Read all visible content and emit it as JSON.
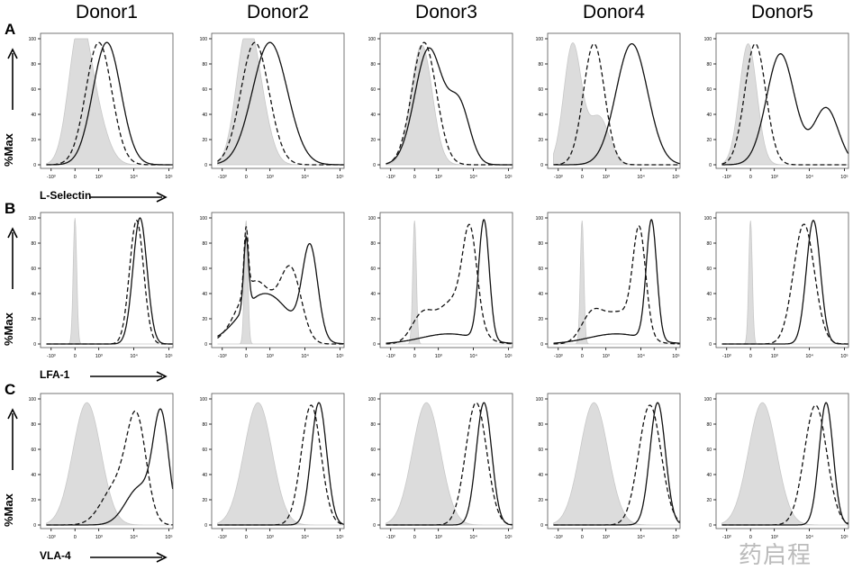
{
  "columns": [
    "Donor1",
    "Donor2",
    "Donor3",
    "Donor4",
    "Donor5"
  ],
  "watermark": "药启程",
  "chart_data": {
    "type": "histogram",
    "ylabel": "%Max",
    "yticks": [
      "0",
      "20",
      "40",
      "60",
      "80",
      "100"
    ],
    "ylim": [
      0,
      100
    ],
    "xscale": "biexponential",
    "xticks": [
      "-10³",
      "0",
      "10³",
      "10⁴",
      "10⁵"
    ],
    "grid": false,
    "series_styles": {
      "control": "gray filled",
      "dashed": "dashed line",
      "solid": "solid line"
    },
    "colors": {
      "control_fill": "#dcdcdc",
      "line": "#111111"
    },
    "rows": [
      {
        "letter": "A",
        "xlabel": "L-Selectin",
        "panels": [
          {
            "control": [
              {
                "c": 150,
                "sd": 0.3,
                "h": 95
              },
              {
                "c": 800,
                "sd": 0.35,
                "h": 40
              }
            ],
            "dashed": [
              {
                "c": 1000,
                "sd": 0.37,
                "h": 97
              }
            ],
            "solid": [
              {
                "c": 1700,
                "sd": 0.4,
                "h": 97
              }
            ]
          },
          {
            "control": [
              {
                "c": 0,
                "sd": 0.3,
                "h": 95
              },
              {
                "c": 600,
                "sd": 0.3,
                "h": 35
              }
            ],
            "dashed": [
              {
                "c": 370,
                "sd": 0.4,
                "h": 97
              }
            ],
            "solid": [
              {
                "c": 1000,
                "sd": 0.5,
                "h": 97
              }
            ]
          },
          {
            "control": [
              {
                "c": 300,
                "sd": 0.3,
                "h": 95
              }
            ],
            "dashed": [
              {
                "c": 400,
                "sd": 0.35,
                "h": 97
              }
            ],
            "solid": [
              {
                "c": 600,
                "sd": 0.4,
                "h": 92
              },
              {
                "c": 4000,
                "sd": 0.3,
                "h": 45
              }
            ]
          },
          {
            "control": [
              {
                "c": -400,
                "sd": 0.25,
                "h": 95
              },
              {
                "c": 700,
                "sd": 0.3,
                "h": 38
              }
            ],
            "dashed": [
              {
                "c": 500,
                "sd": 0.3,
                "h": 96
              }
            ],
            "solid": [
              {
                "c": 5500,
                "sd": 0.45,
                "h": 96
              }
            ]
          },
          {
            "control": [
              {
                "c": -100,
                "sd": 0.25,
                "h": 96
              }
            ],
            "dashed": [
              {
                "c": 200,
                "sd": 0.3,
                "h": 96
              }
            ],
            "solid": [
              {
                "c": 1500,
                "sd": 0.4,
                "h": 88
              },
              {
                "c": 30000,
                "sd": 0.35,
                "h": 45
              }
            ]
          }
        ]
      },
      {
        "letter": "B",
        "xlabel": "LFA-1",
        "panels": [
          {
            "control": [
              {
                "c": 0,
                "sd": 0.05,
                "h": 100
              }
            ],
            "dashed": [
              {
                "c": 12000,
                "sd": 0.2,
                "h": 98
              }
            ],
            "solid": [
              {
                "c": 15000,
                "sd": 0.2,
                "h": 100
              }
            ]
          },
          {
            "control": [
              {
                "c": 0,
                "sd": 0.05,
                "h": 98
              }
            ],
            "dashed": [
              {
                "c": 0,
                "sd": 0.06,
                "h": 50
              },
              {
                "c": 400,
                "sd": 0.5,
                "h": 50
              },
              {
                "c": 4000,
                "sd": 0.3,
                "h": 55
              }
            ],
            "solid": [
              {
                "c": 0,
                "sd": 0.07,
                "h": 55
              },
              {
                "c": 800,
                "sd": 0.7,
                "h": 40
              },
              {
                "c": 14000,
                "sd": 0.22,
                "h": 72
              }
            ]
          },
          {
            "control": [
              {
                "c": 0,
                "sd": 0.05,
                "h": 98
              }
            ],
            "dashed": [
              {
                "c": 300,
                "sd": 0.3,
                "h": 20
              },
              {
                "c": 3000,
                "sd": 0.5,
                "h": 35
              },
              {
                "c": 8000,
                "sd": 0.2,
                "h": 70
              }
            ],
            "solid": [
              {
                "c": 2000,
                "sd": 0.8,
                "h": 8
              },
              {
                "c": 20000,
                "sd": 0.15,
                "h": 95
              }
            ]
          },
          {
            "control": [
              {
                "c": 0,
                "sd": 0.05,
                "h": 98
              }
            ],
            "dashed": [
              {
                "c": 400,
                "sd": 0.3,
                "h": 20
              },
              {
                "c": 2500,
                "sd": 0.5,
                "h": 25
              },
              {
                "c": 9000,
                "sd": 0.18,
                "h": 80
              }
            ],
            "solid": [
              {
                "c": 2000,
                "sd": 0.8,
                "h": 8
              },
              {
                "c": 20000,
                "sd": 0.15,
                "h": 95
              }
            ]
          },
          {
            "control": [
              {
                "c": 0,
                "sd": 0.05,
                "h": 98
              }
            ],
            "dashed": [
              {
                "c": 7000,
                "sd": 0.3,
                "h": 95
              }
            ],
            "solid": [
              {
                "c": 13000,
                "sd": 0.2,
                "h": 98
              }
            ]
          }
        ]
      },
      {
        "letter": "C",
        "xlabel": "VLA-4",
        "panels": [
          {
            "control": [
              {
                "c": 500,
                "sd": 0.4,
                "h": 97
              }
            ],
            "dashed": [
              {
                "c": 3000,
                "sd": 0.4,
                "h": 30
              },
              {
                "c": 12000,
                "sd": 0.28,
                "h": 80
              }
            ],
            "solid": [
              {
                "c": 15000,
                "sd": 0.4,
                "h": 30
              },
              {
                "c": 60000,
                "sd": 0.22,
                "h": 82
              }
            ]
          },
          {
            "control": [
              {
                "c": 500,
                "sd": 0.4,
                "h": 97
              }
            ],
            "dashed": [
              {
                "c": 15000,
                "sd": 0.28,
                "h": 95
              }
            ],
            "solid": [
              {
                "c": 25000,
                "sd": 0.22,
                "h": 97
              }
            ]
          },
          {
            "control": [
              {
                "c": 500,
                "sd": 0.4,
                "h": 97
              }
            ],
            "dashed": [
              {
                "c": 12000,
                "sd": 0.3,
                "h": 97
              }
            ],
            "solid": [
              {
                "c": 20000,
                "sd": 0.22,
                "h": 97
              }
            ]
          },
          {
            "control": [
              {
                "c": 500,
                "sd": 0.4,
                "h": 97
              }
            ],
            "dashed": [
              {
                "c": 18000,
                "sd": 0.32,
                "h": 95
              }
            ],
            "solid": [
              {
                "c": 30000,
                "sd": 0.22,
                "h": 97
              }
            ]
          },
          {
            "control": [
              {
                "c": 500,
                "sd": 0.4,
                "h": 97
              }
            ],
            "dashed": [
              {
                "c": 15000,
                "sd": 0.32,
                "h": 95
              }
            ],
            "solid": [
              {
                "c": 30000,
                "sd": 0.2,
                "h": 97
              }
            ]
          }
        ]
      }
    ]
  }
}
